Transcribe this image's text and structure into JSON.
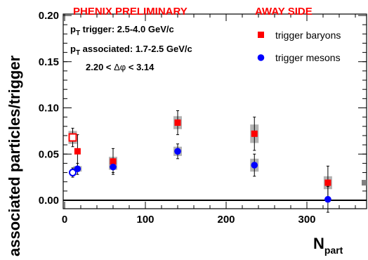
{
  "header": {
    "preliminary": "PHENIX PRELIMINARY",
    "side": "AWAY SIDE"
  },
  "info": {
    "trigger_sym": "p",
    "trigger_sub": "T",
    "trigger_text": " trigger: 2.5-4.0 GeV/c",
    "assoc_sym": "p",
    "assoc_sub": "T",
    "assoc_text": " associated: 1.7-2.5 GeV/c",
    "dphi_left": "2.20 < ",
    "dphi_sym": "Δφ",
    "dphi_right": " < 3.14"
  },
  "colors": {
    "baryon": "#ff0000",
    "meson": "#0000ff",
    "syst_band": "#b3b3b3"
  },
  "chart_data": {
    "type": "scatter",
    "title": "",
    "xlabel": "N",
    "xlabel_sub": "part",
    "ylabel": "associated particles/trigger",
    "xlim": [
      0,
      370
    ],
    "ylim": [
      -0.02,
      0.2
    ],
    "xticks": [
      0,
      100,
      200,
      300
    ],
    "yticks": [
      0.0,
      0.05,
      0.1,
      0.15,
      0.2
    ],
    "ytick_labels": [
      "0.00",
      "0.05",
      "0.10",
      "0.15",
      "0.20"
    ],
    "xtick_labels": [
      "0",
      "100",
      "200",
      "300"
    ],
    "zero_line": true,
    "legend_position": "top-right",
    "series": [
      {
        "name": "trigger baryons",
        "marker": "square",
        "points": [
          {
            "x": 10,
            "y": 0.068,
            "err": 0.01,
            "syst": 0.007,
            "open": true
          },
          {
            "x": 16,
            "y": 0.053,
            "err": 0.018,
            "syst": 0.0,
            "open": false
          },
          {
            "x": 60,
            "y": 0.042,
            "err": 0.014,
            "syst": 0.005,
            "open": false
          },
          {
            "x": 140,
            "y": 0.084,
            "err": 0.013,
            "syst": 0.007,
            "open": false
          },
          {
            "x": 235,
            "y": 0.072,
            "err": 0.018,
            "syst": 0.01,
            "open": false
          },
          {
            "x": 326,
            "y": 0.019,
            "err": 0.018,
            "syst": 0.007,
            "open": false
          }
        ]
      },
      {
        "name": "trigger mesons",
        "marker": "circle",
        "points": [
          {
            "x": 10,
            "y": 0.03,
            "err": 0.005,
            "syst": 0.0,
            "open": true
          },
          {
            "x": 16,
            "y": 0.034,
            "err": 0.006,
            "syst": 0.003,
            "open": false
          },
          {
            "x": 60,
            "y": 0.036,
            "err": 0.006,
            "syst": 0.003,
            "open": false
          },
          {
            "x": 140,
            "y": 0.053,
            "err": 0.008,
            "syst": 0.005,
            "open": false
          },
          {
            "x": 235,
            "y": 0.038,
            "err": 0.012,
            "syst": 0.007,
            "open": false
          },
          {
            "x": 326,
            "y": 0.001,
            "err": 0.014,
            "syst": 0.0,
            "open": false
          }
        ]
      }
    ],
    "edge_marker": {
      "y": 0.019
    }
  }
}
